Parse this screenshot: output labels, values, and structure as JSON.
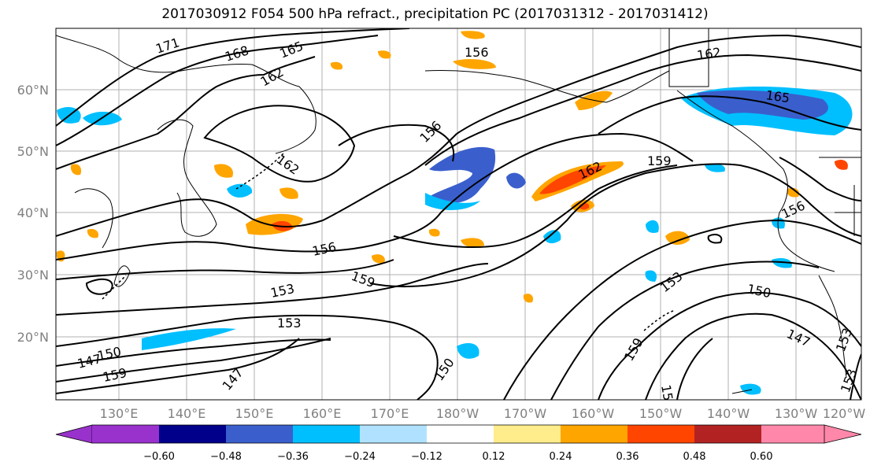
{
  "title": "2017030912 F054 500 hPa refract., precipitation PC (2017031312 - 2017031412)",
  "map": {
    "lat_labels": [
      "20°N",
      "30°N",
      "40°N",
      "50°N",
      "60°N"
    ],
    "lon_labels": [
      "130°E",
      "140°E",
      "150°E",
      "160°E",
      "170°E",
      "180°W",
      "170°W",
      "160°W",
      "150°W",
      "140°W",
      "130°W",
      "120°W"
    ],
    "contour_labels": [
      "171",
      "168",
      "165",
      "162",
      "162",
      "159",
      "156",
      "156",
      "153",
      "153",
      "150",
      "147",
      "159",
      "147",
      "150",
      "153",
      "159",
      "153",
      "150",
      "147",
      "153",
      "162",
      "165",
      "162",
      "159",
      "156",
      "153",
      "156",
      "159",
      "147",
      "150"
    ],
    "colors": {
      "contour": "#000000",
      "grid": "#b0b0b0",
      "coast": "#000000"
    }
  },
  "colorbar": {
    "ticks": [
      "−0.60",
      "−0.48",
      "−0.36",
      "−0.24",
      "−0.12",
      "0.12",
      "0.24",
      "0.36",
      "0.48",
      "0.60"
    ],
    "colors": [
      "#9932cc",
      "#00008b",
      "#3a5fcd",
      "#00bfff",
      "#b0e2ff",
      "#ffffff",
      "#ffec8b",
      "#ffa500",
      "#ff4500",
      "#b22222",
      "#ff88aa"
    ]
  }
}
